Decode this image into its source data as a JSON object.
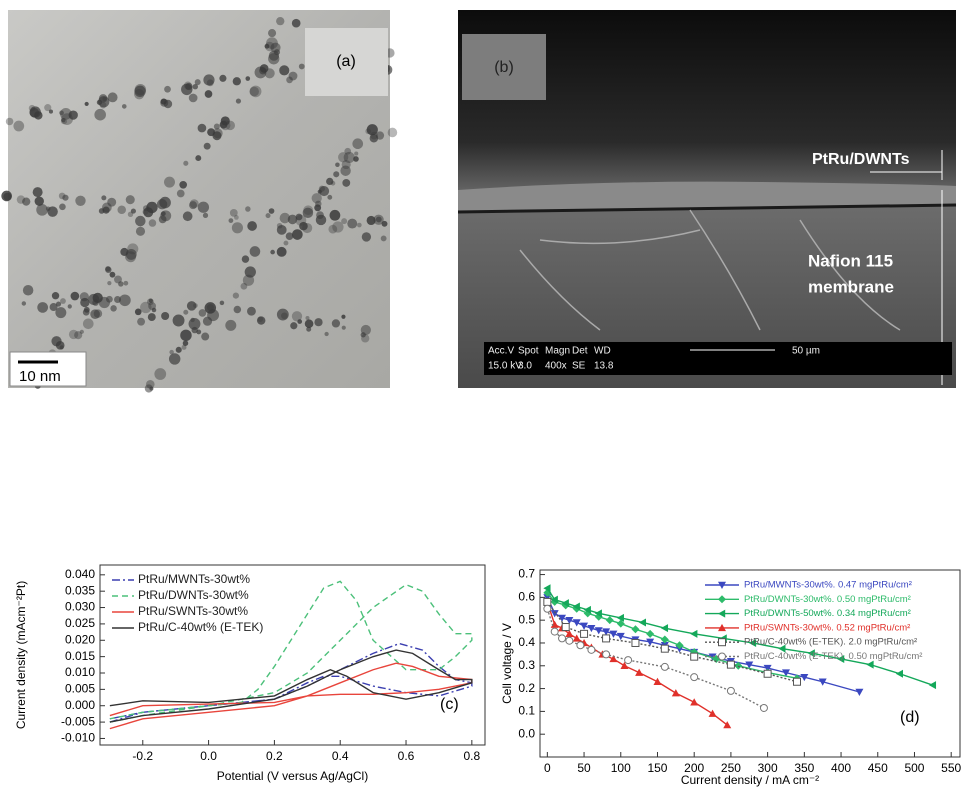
{
  "images": {
    "a": {
      "label": "(a)",
      "scale_bar": "10 nm"
    },
    "b": {
      "label": "(b)",
      "layer_top": "PtRu/DWNTs",
      "layer_bottom": [
        "Nafion 115",
        "membrane"
      ],
      "info_header": [
        "Acc.V",
        "Spot",
        "Magn",
        "Det",
        "WD"
      ],
      "info_values": [
        "15.0 kV",
        "3.0",
        "400x",
        "SE",
        "13.8"
      ],
      "scale_bar": "50 µm"
    }
  },
  "chart_data": [
    {
      "type": "line",
      "annotation": "(c)",
      "xlabel": "Potential (V versus Ag/AgCl)",
      "ylabel": "Current density (mAcm⁻²Pt)",
      "xlim": [
        -0.33,
        0.84
      ],
      "ylim": [
        -0.012,
        0.043
      ],
      "xticks": [
        -0.2,
        {
          "value": 0,
          "label": "0.0"
        },
        0.2,
        0.4,
        0.6,
        0.8
      ],
      "yticks": [
        {
          "value": -0.01,
          "label": "-0.010"
        },
        {
          "value": -0.005,
          "label": "-0.005"
        },
        {
          "value": 0,
          "label": "0.000"
        },
        {
          "value": 0.005,
          "label": "0.005"
        },
        {
          "value": 0.01,
          "label": "0.010"
        },
        {
          "value": 0.015,
          "label": "0.015"
        },
        {
          "value": 0.02,
          "label": "0.020"
        },
        {
          "value": 0.025,
          "label": "0.025"
        },
        {
          "value": 0.03,
          "label": "0.030"
        },
        {
          "value": 0.035,
          "label": "0.035"
        },
        {
          "value": 0.04,
          "label": "0.040"
        }
      ],
      "legend": "upper left",
      "series": [
        {
          "name": "PtRu/MWNTs-30wt%",
          "color": "#3b3fb0",
          "dash": "dashdot",
          "x": [
            -0.3,
            -0.2,
            0,
            0.2,
            0.3,
            0.4,
            0.5,
            0.58,
            0.65,
            0.7,
            0.75,
            0.8,
            0.8,
            0.7,
            0.6,
            0.5,
            0.4,
            0.35,
            0.3,
            0.2,
            0,
            -0.2,
            -0.3
          ],
          "values": [
            -0.005,
            -0.002,
            0,
            0.002,
            0.006,
            0.011,
            0.016,
            0.019,
            0.017,
            0.012,
            0.008,
            0.007,
            0.006,
            0.003,
            0.004,
            0.006,
            0.009,
            0.009,
            0.007,
            0.002,
            0,
            -0.002,
            -0.004
          ]
        },
        {
          "name": "PtRu/DWNTs-30wt%",
          "color": "#4cc07a",
          "dash": "dashed",
          "x": [
            -0.3,
            -0.2,
            0,
            0.2,
            0.3,
            0.4,
            0.5,
            0.6,
            0.65,
            0.7,
            0.75,
            0.8,
            0.8,
            0.75,
            0.7,
            0.6,
            0.5,
            0.45,
            0.4,
            0.35,
            0.3,
            0.2,
            0.15,
            0.1,
            0,
            -0.2,
            -0.3
          ],
          "values": [
            -0.005,
            -0.003,
            0,
            0.004,
            0.01,
            0.02,
            0.03,
            0.037,
            0.035,
            0.028,
            0.022,
            0.022,
            0.02,
            0.015,
            0.011,
            0.011,
            0.02,
            0.032,
            0.038,
            0.036,
            0.028,
            0.012,
            0.005,
            0.001,
            0,
            -0.002,
            -0.004
          ]
        },
        {
          "name": "PtRu/SWNTs-30wt%",
          "color": "#e8453c",
          "dash": "solid",
          "x": [
            -0.3,
            -0.2,
            0,
            0.2,
            0.3,
            0.4,
            0.5,
            0.57,
            0.62,
            0.7,
            0.8,
            0.8,
            0.7,
            0.6,
            0.5,
            0.4,
            0.3,
            0.2,
            0,
            -0.2,
            -0.3
          ],
          "values": [
            -0.007,
            -0.004,
            -0.002,
            0,
            0.003,
            0.007,
            0.011,
            0.013,
            0.012,
            0.009,
            0.008,
            0.007,
            0.005,
            0.004,
            0.0035,
            0.0035,
            0.003,
            0.001,
            0.0005,
            0,
            -0.003
          ]
        },
        {
          "name": "PtRu/C-40wt% (E-TEK)",
          "color": "#333333",
          "dash": "solid",
          "x": [
            -0.3,
            -0.2,
            0,
            0.2,
            0.3,
            0.4,
            0.5,
            0.57,
            0.62,
            0.7,
            0.75,
            0.8,
            0.8,
            0.7,
            0.6,
            0.5,
            0.42,
            0.37,
            0.3,
            0.2,
            0,
            -0.2,
            -0.3
          ],
          "values": [
            -0.005,
            -0.003,
            -0.001,
            0.002,
            0.006,
            0.011,
            0.015,
            0.017,
            0.016,
            0.011,
            0.008,
            0.008,
            0.007,
            0.004,
            0.002,
            0.004,
            0.009,
            0.011,
            0.008,
            0.003,
            0.001,
            0.0015,
            0
          ]
        }
      ]
    },
    {
      "type": "line",
      "annotation": "(d)",
      "xlabel": "Current density / mA cm⁻²",
      "ylabel": "Cell voltage / V",
      "xlim": [
        -10,
        562
      ],
      "ylim": [
        -0.1,
        0.72
      ],
      "xticks": [
        0,
        50,
        100,
        150,
        200,
        250,
        300,
        350,
        400,
        450,
        500,
        550
      ],
      "yticks": [
        {
          "value": 0,
          "label": "0.0"
        },
        0.1,
        0.2,
        0.3,
        0.4,
        0.5,
        0.6,
        0.7
      ],
      "legend": "upper right",
      "series": [
        {
          "name": "PtRu/MWNTs-30wt%. 0.47 mgPtRu/cm²",
          "color": "#3b48c0",
          "dash": "solid",
          "marker": "triangle-down",
          "x": [
            0,
            10,
            20,
            30,
            40,
            50,
            60,
            70,
            80,
            90,
            100,
            120,
            140,
            160,
            180,
            200,
            225,
            250,
            275,
            300,
            325,
            350,
            375,
            425
          ],
          "values": [
            0.6,
            0.53,
            0.51,
            0.5,
            0.49,
            0.475,
            0.465,
            0.455,
            0.45,
            0.44,
            0.43,
            0.415,
            0.405,
            0.39,
            0.375,
            0.36,
            0.34,
            0.32,
            0.305,
            0.29,
            0.27,
            0.25,
            0.23,
            0.185
          ]
        },
        {
          "name": "PtRu/DWNTs-30wt%. 0.50 mgPtRu/cm²",
          "color": "#2dbb6a",
          "dash": "solid",
          "marker": "diamond",
          "x": [
            0,
            10,
            25,
            40,
            55,
            70,
            85,
            100,
            120,
            140,
            160,
            180,
            200,
            230,
            260,
            300,
            340
          ],
          "values": [
            0.62,
            0.58,
            0.565,
            0.55,
            0.53,
            0.515,
            0.5,
            0.485,
            0.46,
            0.44,
            0.415,
            0.39,
            0.36,
            0.33,
            0.3,
            0.27,
            0.245
          ]
        },
        {
          "name": "PtRu/DWNTs-50wt%. 0.34 mgPtRu/cm²",
          "color": "#14a85a",
          "dash": "solid",
          "marker": "triangle-left",
          "x": [
            0,
            10,
            25,
            40,
            55,
            70,
            100,
            130,
            160,
            200,
            240,
            280,
            320,
            360,
            400,
            440,
            480,
            525
          ],
          "values": [
            0.64,
            0.59,
            0.575,
            0.56,
            0.545,
            0.53,
            0.51,
            0.49,
            0.465,
            0.44,
            0.42,
            0.4,
            0.375,
            0.355,
            0.33,
            0.305,
            0.265,
            0.215
          ]
        },
        {
          "name": "PtRu/SWNTs-30wt%. 0.52 mgPtRu/cm²",
          "color": "#e0302a",
          "dash": "solid",
          "marker": "triangle-up",
          "x": [
            0,
            10,
            20,
            30,
            40,
            50,
            60,
            75,
            90,
            105,
            125,
            150,
            175,
            200,
            225,
            245
          ],
          "values": [
            0.58,
            0.48,
            0.465,
            0.44,
            0.42,
            0.4,
            0.38,
            0.35,
            0.33,
            0.3,
            0.27,
            0.23,
            0.18,
            0.14,
            0.09,
            0.04
          ]
        },
        {
          "name": "PtRu/C-40wt% (E-TEK). 2.0 mgPtRu/cm²",
          "color": "#555555",
          "dash": "dotted",
          "marker": "square-open",
          "x": [
            0,
            25,
            50,
            80,
            120,
            160,
            200,
            250,
            300,
            340
          ],
          "values": [
            0.58,
            0.47,
            0.44,
            0.42,
            0.4,
            0.375,
            0.34,
            0.305,
            0.265,
            0.23
          ]
        },
        {
          "name": "PtRu/C-40wt% (E-TEK). 0.50 mgPtRu/cm²",
          "color": "#777777",
          "dash": "dotted",
          "marker": "circle-open",
          "x": [
            0,
            10,
            20,
            30,
            45,
            60,
            80,
            110,
            160,
            200,
            250,
            295
          ],
          "values": [
            0.55,
            0.45,
            0.42,
            0.41,
            0.39,
            0.37,
            0.35,
            0.325,
            0.295,
            0.25,
            0.19,
            0.115
          ]
        }
      ]
    }
  ]
}
